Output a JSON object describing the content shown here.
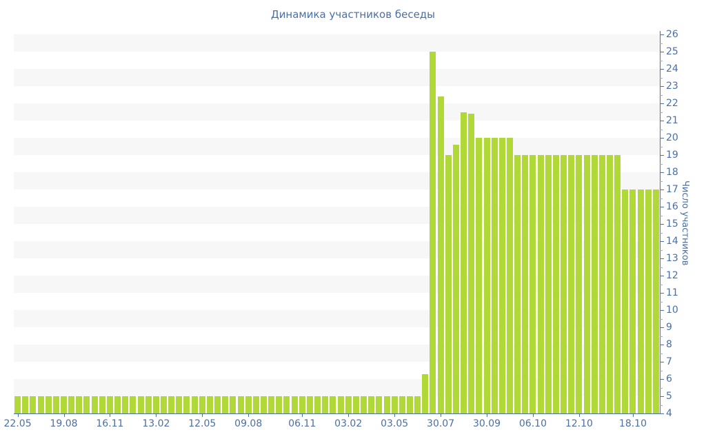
{
  "title": "Динамика участников беседы",
  "colors": {
    "bar": "#b0d836",
    "axis": "#4a6fa5",
    "text": "#4a6fa5",
    "minor_tick": "#9aa9c4",
    "band": "#f7f7f7",
    "background": "#ffffff"
  },
  "chart_data": {
    "type": "bar",
    "title": "Динамика участников беседы",
    "xlabel": "",
    "ylabel": "Число участников",
    "ylim": [
      4,
      26
    ],
    "y_tick_step": 1,
    "y_minor_tick_step": 0.5,
    "y_ticks": [
      4,
      5,
      6,
      7,
      8,
      9,
      10,
      11,
      12,
      13,
      14,
      15,
      16,
      17,
      18,
      19,
      20,
      21,
      22,
      23,
      24,
      25,
      26
    ],
    "grid": "alternating horizontal bands, gray on odd-to-even unit intervals",
    "legend": "none",
    "x_ticks": [
      {
        "label": "22.05",
        "bar_index": 0
      },
      {
        "label": "19.08",
        "bar_index": 6
      },
      {
        "label": "16.11",
        "bar_index": 12
      },
      {
        "label": "13.02",
        "bar_index": 18
      },
      {
        "label": "12.05",
        "bar_index": 24
      },
      {
        "label": "09.08",
        "bar_index": 30
      },
      {
        "label": "06.11",
        "bar_index": 37
      },
      {
        "label": "03.02",
        "bar_index": 43
      },
      {
        "label": "03.05",
        "bar_index": 49
      },
      {
        "label": "30.07",
        "bar_index": 55
      },
      {
        "label": "30.09",
        "bar_index": 61
      },
      {
        "label": "06.10",
        "bar_index": 67
      },
      {
        "label": "12.10",
        "bar_index": 73
      },
      {
        "label": "18.10",
        "bar_index": 80
      }
    ],
    "values": [
      5,
      5,
      5,
      5,
      5,
      5,
      5,
      5,
      5,
      5,
      5,
      5,
      5,
      5,
      5,
      5,
      5,
      5,
      5,
      5,
      5,
      5,
      5,
      5,
      5,
      5,
      5,
      5,
      5,
      5,
      5,
      5,
      5,
      5,
      5,
      5,
      5,
      5,
      5,
      5,
      5,
      5,
      5,
      5,
      5,
      5,
      5,
      5,
      5,
      5,
      5,
      5,
      5,
      6.3,
      25,
      22.4,
      19,
      19.6,
      21.5,
      21.4,
      20,
      20,
      20,
      20,
      20,
      19,
      19,
      19,
      19,
      19,
      19,
      19,
      19,
      19,
      19,
      19,
      19,
      19,
      19,
      17,
      17,
      17,
      17,
      17
    ]
  }
}
